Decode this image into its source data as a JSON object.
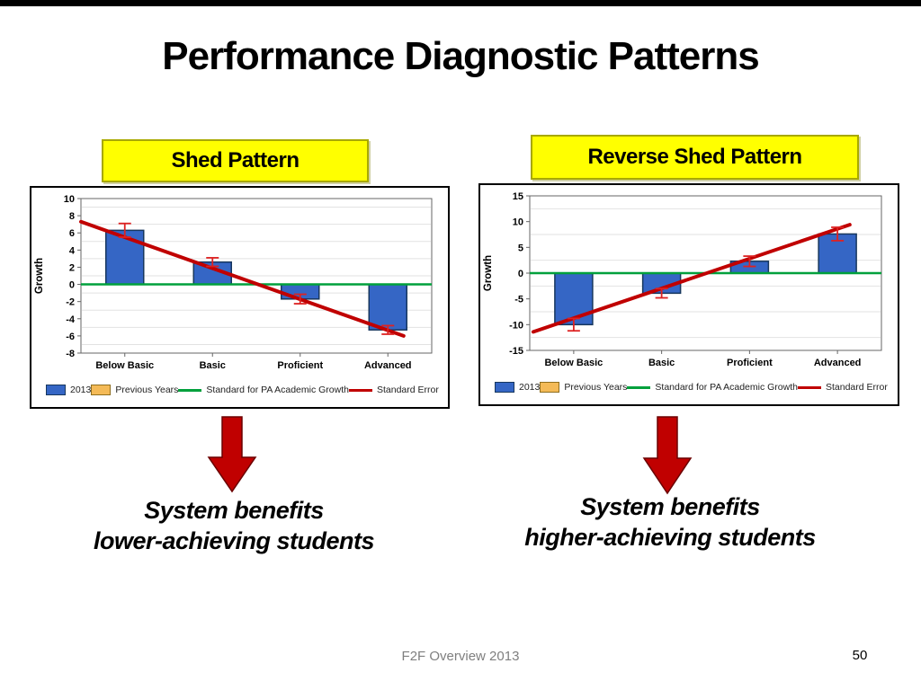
{
  "slide": {
    "title": "Performance Diagnostic Patterns",
    "footer_text": "F2F Overview 2013",
    "page_number": "50"
  },
  "left_panel": {
    "label": "Shed Pattern",
    "caption_line1": "System benefits",
    "caption_line2": "lower-achieving students"
  },
  "right_panel": {
    "label": "Reverse Shed Pattern",
    "caption_line1": "System benefits",
    "caption_line2": "higher-achieving students"
  },
  "chart_data": [
    {
      "type": "bar",
      "title": "Shed Pattern",
      "ylabel": "Growth",
      "ylim": [
        -8,
        10
      ],
      "ytick_step": 2,
      "categories": [
        "Below Basic",
        "Basic",
        "Proficient",
        "Advanced"
      ],
      "series": [
        {
          "name": "2013",
          "values": [
            6.3,
            2.6,
            -1.7,
            -5.3
          ]
        }
      ],
      "error_bars": [
        0.8,
        0.5,
        0.55,
        0.5
      ],
      "reference_line": {
        "label": "Standard for PA Academic Growth",
        "value": 0
      },
      "trend_line": {
        "label": "Standard Error",
        "x_frac_start": 0.0,
        "y_start": 7.3,
        "x_frac_end": 0.92,
        "y_end": -6.0
      },
      "grid": true,
      "legend_position": "bottom",
      "legend_items": [
        {
          "label": "2013",
          "swatch": "bar-blue"
        },
        {
          "label": "Previous Years",
          "swatch": "bar-orange"
        },
        {
          "label": "Standard for PA Academic Growth",
          "swatch": "line-green"
        },
        {
          "label": "Standard Error",
          "swatch": "line-red"
        }
      ]
    },
    {
      "type": "bar",
      "title": "Reverse Shed Pattern",
      "ylabel": "Growth",
      "ylim": [
        -15,
        15
      ],
      "ytick_step": 5,
      "categories": [
        "Below Basic",
        "Basic",
        "Proficient",
        "Advanced"
      ],
      "series": [
        {
          "name": "2013",
          "values": [
            -10.0,
            -3.9,
            2.3,
            7.6
          ]
        }
      ],
      "error_bars": [
        1.2,
        0.9,
        1.0,
        1.3
      ],
      "reference_line": {
        "label": "Standard for PA Academic Growth",
        "value": 0
      },
      "trend_line": {
        "label": "Standard Error",
        "x_frac_start": 0.01,
        "y_start": -11.4,
        "x_frac_end": 0.91,
        "y_end": 9.4
      },
      "grid": true,
      "legend_position": "bottom",
      "legend_items": [
        {
          "label": "2013",
          "swatch": "bar-blue"
        },
        {
          "label": "Previous Years",
          "swatch": "bar-orange"
        },
        {
          "label": "Standard for PA Academic Growth",
          "swatch": "line-green"
        },
        {
          "label": "Standard Error",
          "swatch": "line-red"
        }
      ]
    }
  ],
  "colors": {
    "bar_fill": "#3566C5",
    "bar_border": "#17375E",
    "prev_years_fill": "#F4BA57",
    "prev_years_border": "#8F6E1E",
    "standard_line_green": "#00A03C",
    "trend_red": "#C00000",
    "error_red": "#DD2222",
    "gridline": "#E2E2E2",
    "plot_border": "#666666",
    "yellow_box": "#FFFF00",
    "arrow_fill": "#C00000",
    "arrow_border": "#6B0000",
    "footer_gray": "#7F7F7F"
  }
}
